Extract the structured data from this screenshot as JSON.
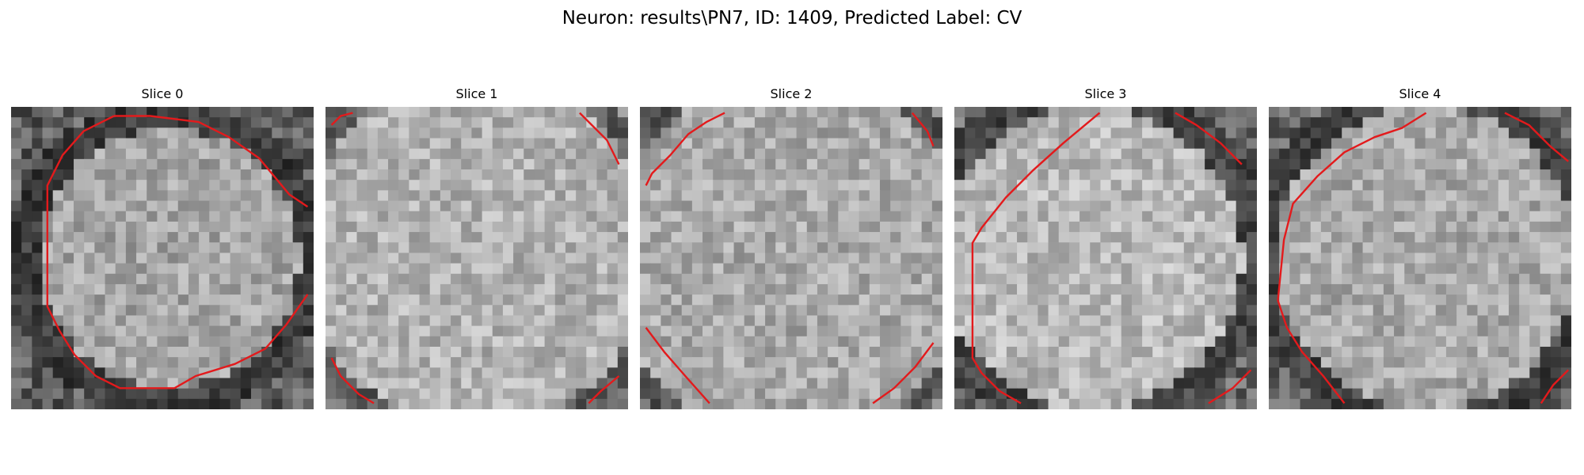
{
  "figure": {
    "title": "Neuron: results\\PN7, ID: 1409, Predicted Label: CV"
  },
  "style": {
    "contour_color": "#e31a1c",
    "colormap": "grayscale"
  },
  "slices": [
    {
      "title": "Slice 0",
      "contours": [
        [
          [
            0.34,
            0.03
          ],
          [
            0.46,
            0.03
          ],
          [
            0.62,
            0.05
          ],
          [
            0.72,
            0.1
          ],
          [
            0.82,
            0.17
          ],
          [
            0.92,
            0.29
          ],
          [
            0.98,
            0.33
          ]
        ],
        [
          [
            0.34,
            0.03
          ],
          [
            0.24,
            0.08
          ],
          [
            0.17,
            0.16
          ],
          [
            0.12,
            0.26
          ],
          [
            0.12,
            0.34
          ],
          [
            0.12,
            0.66
          ],
          [
            0.16,
            0.74
          ],
          [
            0.21,
            0.82
          ],
          [
            0.28,
            0.89
          ],
          [
            0.36,
            0.93
          ],
          [
            0.54,
            0.93
          ],
          [
            0.61,
            0.89
          ],
          [
            0.74,
            0.85
          ],
          [
            0.84,
            0.8
          ],
          [
            0.91,
            0.72
          ],
          [
            0.98,
            0.62
          ]
        ]
      ]
    },
    {
      "title": "Slice 1",
      "contours": [
        [
          [
            0.02,
            0.06
          ],
          [
            0.05,
            0.03
          ],
          [
            0.09,
            0.02
          ]
        ],
        [
          [
            0.84,
            0.02
          ],
          [
            0.93,
            0.11
          ],
          [
            0.97,
            0.19
          ]
        ],
        [
          [
            0.02,
            0.83
          ],
          [
            0.05,
            0.89
          ],
          [
            0.11,
            0.95
          ],
          [
            0.16,
            0.98
          ]
        ],
        [
          [
            0.87,
            0.98
          ],
          [
            0.91,
            0.94
          ],
          [
            0.97,
            0.89
          ]
        ]
      ]
    },
    {
      "title": "Slice 2",
      "contours": [
        [
          [
            0.02,
            0.26
          ],
          [
            0.04,
            0.22
          ],
          [
            0.1,
            0.16
          ],
          [
            0.16,
            0.09
          ],
          [
            0.22,
            0.05
          ],
          [
            0.28,
            0.02
          ]
        ],
        [
          [
            0.9,
            0.02
          ],
          [
            0.95,
            0.08
          ],
          [
            0.97,
            0.13
          ]
        ],
        [
          [
            0.02,
            0.73
          ],
          [
            0.08,
            0.81
          ],
          [
            0.15,
            0.89
          ],
          [
            0.23,
            0.98
          ]
        ],
        [
          [
            0.77,
            0.98
          ],
          [
            0.84,
            0.93
          ],
          [
            0.91,
            0.86
          ],
          [
            0.97,
            0.78
          ]
        ]
      ]
    },
    {
      "title": "Slice 3",
      "contours": [
        [
          [
            0.48,
            0.02
          ],
          [
            0.36,
            0.12
          ],
          [
            0.26,
            0.21
          ],
          [
            0.17,
            0.3
          ],
          [
            0.09,
            0.4
          ],
          [
            0.06,
            0.45
          ],
          [
            0.06,
            0.83
          ],
          [
            0.09,
            0.88
          ],
          [
            0.15,
            0.94
          ],
          [
            0.22,
            0.98
          ]
        ],
        [
          [
            0.73,
            0.02
          ],
          [
            0.8,
            0.06
          ],
          [
            0.88,
            0.12
          ],
          [
            0.95,
            0.19
          ]
        ],
        [
          [
            0.84,
            0.98
          ],
          [
            0.92,
            0.93
          ],
          [
            0.98,
            0.87
          ]
        ]
      ]
    },
    {
      "title": "Slice 4",
      "contours": [
        [
          [
            0.52,
            0.02
          ],
          [
            0.44,
            0.07
          ],
          [
            0.35,
            0.1
          ],
          [
            0.25,
            0.15
          ],
          [
            0.16,
            0.23
          ],
          [
            0.08,
            0.32
          ],
          [
            0.05,
            0.44
          ],
          [
            0.03,
            0.64
          ],
          [
            0.06,
            0.73
          ],
          [
            0.11,
            0.81
          ],
          [
            0.18,
            0.89
          ],
          [
            0.25,
            0.98
          ]
        ],
        [
          [
            0.78,
            0.02
          ],
          [
            0.86,
            0.06
          ],
          [
            0.93,
            0.13
          ],
          [
            0.99,
            0.18
          ]
        ],
        [
          [
            0.9,
            0.98
          ],
          [
            0.94,
            0.92
          ],
          [
            0.99,
            0.87
          ]
        ]
      ]
    }
  ]
}
